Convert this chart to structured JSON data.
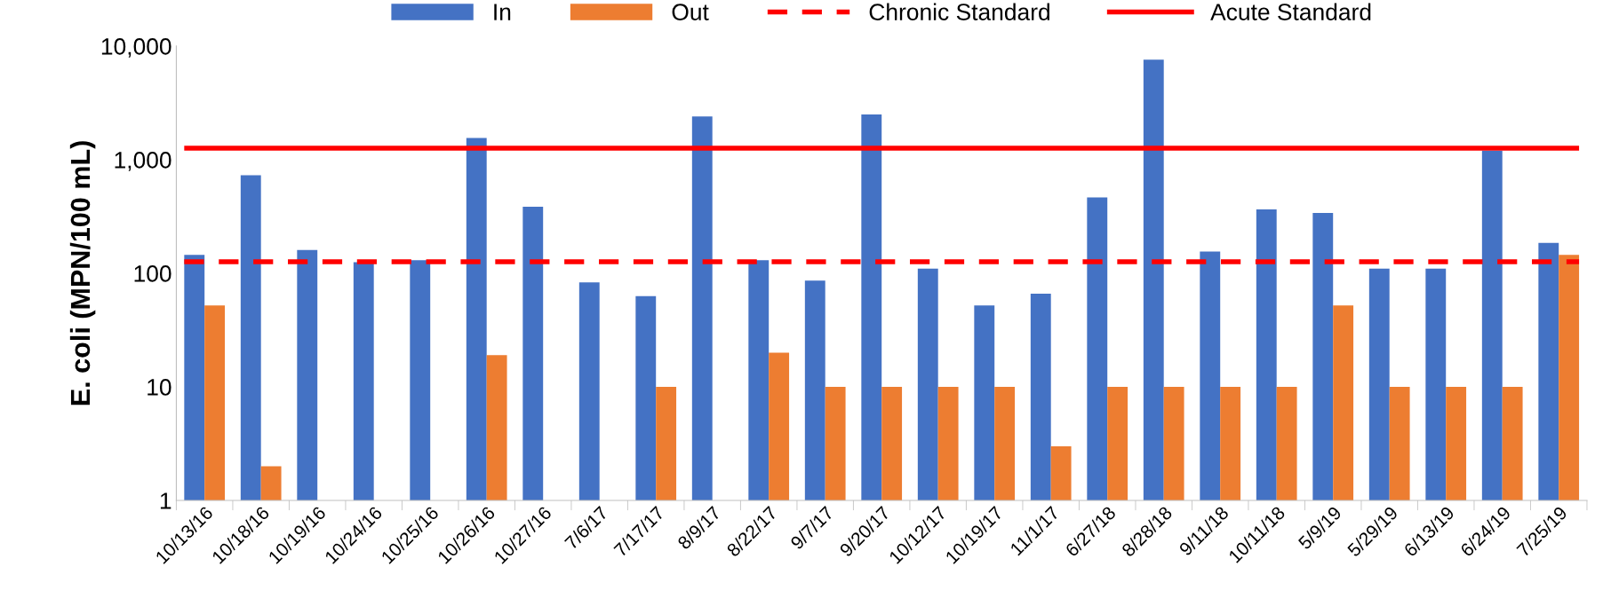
{
  "chart_data": {
    "type": "bar",
    "ylabel": "E. coli (MPN/100 mL)",
    "categories": [
      "10/13/16",
      "10/18/16",
      "10/19/16",
      "10/24/16",
      "10/25/16",
      "10/26/16",
      "10/27/16",
      "7/6/17",
      "7/17/17",
      "8/9/17",
      "8/22/17",
      "9/7/17",
      "9/20/17",
      "10/12/17",
      "10/19/17",
      "11/1/17",
      "6/27/18",
      "8/28/18",
      "9/11/18",
      "10/11/18",
      "5/9/19",
      "5/29/19",
      "6/13/19",
      "6/24/19",
      "7/25/19"
    ],
    "series": [
      {
        "name": "In",
        "color": "#4472c4",
        "values": [
          145,
          730,
          160,
          125,
          130,
          1550,
          385,
          83,
          63,
          2400,
          130,
          86,
          2500,
          110,
          52,
          66,
          465,
          7600,
          155,
          365,
          340,
          110,
          110,
          1200,
          185
        ]
      },
      {
        "name": "Out",
        "color": "#ed7d31",
        "values": [
          52,
          2,
          null,
          null,
          null,
          19,
          null,
          null,
          10,
          null,
          20,
          10,
          10,
          10,
          10,
          3,
          10,
          10,
          10,
          10,
          52,
          10,
          10,
          10,
          145
        ]
      }
    ],
    "ref_lines": [
      {
        "axis": "y",
        "value": 126,
        "label": "Chronic Standard",
        "color": "#ff0000",
        "line_style": "dashed"
      },
      {
        "axis": "y",
        "value": 1260,
        "label": "Acute Standard",
        "color": "#ff0000",
        "line_style": "solid"
      }
    ],
    "log": "y",
    "ylim": [
      1,
      10000
    ],
    "yticks": [
      1,
      10,
      {
        "value": 100,
        "label": "100"
      },
      {
        "value": 1000,
        "label": "1,000"
      },
      {
        "value": 10000,
        "label": "10,000"
      }
    ],
    "grid": false,
    "legend": "top"
  }
}
